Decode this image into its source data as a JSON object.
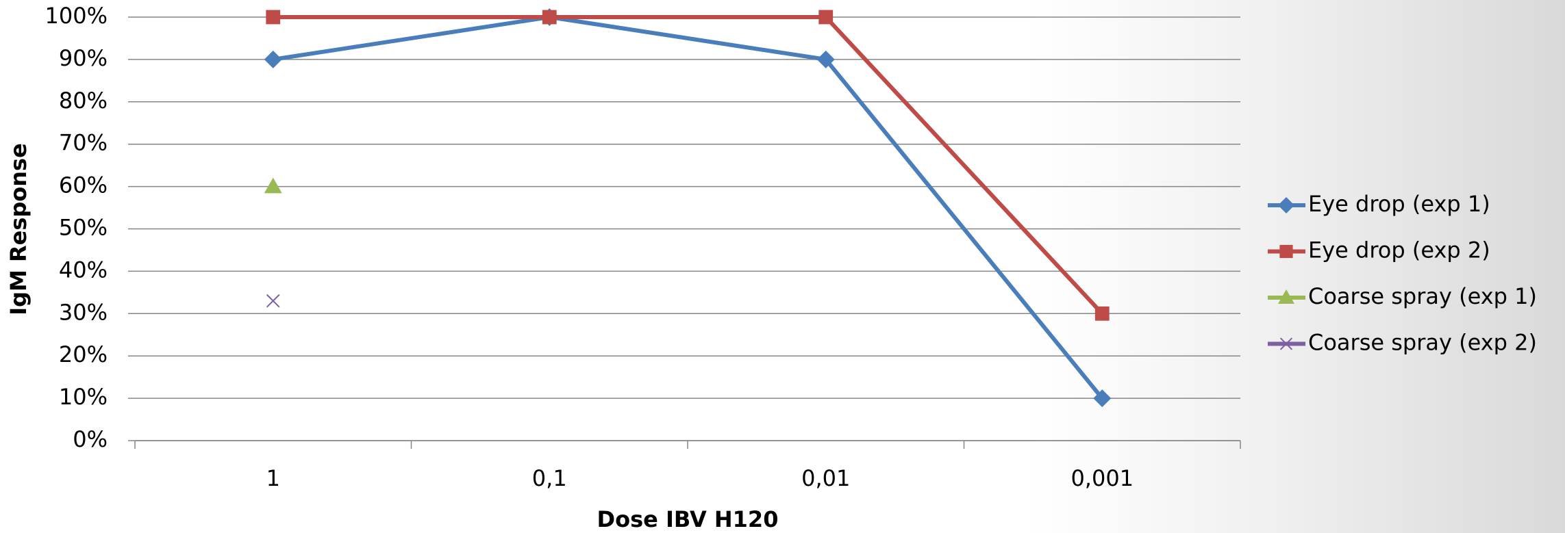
{
  "chart_data": {
    "type": "line",
    "x_label": "Dose IBV H120",
    "y_label": "IgM Response",
    "categories": [
      "1",
      "0,1",
      "0,01",
      "0,001"
    ],
    "series": [
      {
        "name": "Eye drop (exp 1)",
        "color": "#4a7ebb",
        "marker": "diamond",
        "values": [
          90,
          100,
          90,
          10
        ]
      },
      {
        "name": "Eye drop (exp 2)",
        "color": "#be4b48",
        "marker": "square",
        "values": [
          100,
          100,
          100,
          30
        ]
      },
      {
        "name": "Coarse spray (exp 1)",
        "color": "#98b954",
        "marker": "triangle",
        "values": [
          60,
          null,
          null,
          null
        ]
      },
      {
        "name": "Coarse spray (exp 2)",
        "color": "#7d60a0",
        "marker": "x",
        "values": [
          33,
          null,
          null,
          null
        ]
      }
    ],
    "ylim": [
      0,
      100
    ],
    "yticks": [
      {
        "value": 0,
        "label": "0%"
      },
      {
        "value": 10,
        "label": "10%"
      },
      {
        "value": 20,
        "label": "20%"
      },
      {
        "value": 30,
        "label": "30%"
      },
      {
        "value": 40,
        "label": "40%"
      },
      {
        "value": 50,
        "label": "50%"
      },
      {
        "value": 60,
        "label": "60%"
      },
      {
        "value": 70,
        "label": "70%"
      },
      {
        "value": 80,
        "label": "80%"
      },
      {
        "value": 90,
        "label": "90%"
      },
      {
        "value": 100,
        "label": "100%"
      }
    ],
    "grid": true,
    "legend": "right"
  }
}
